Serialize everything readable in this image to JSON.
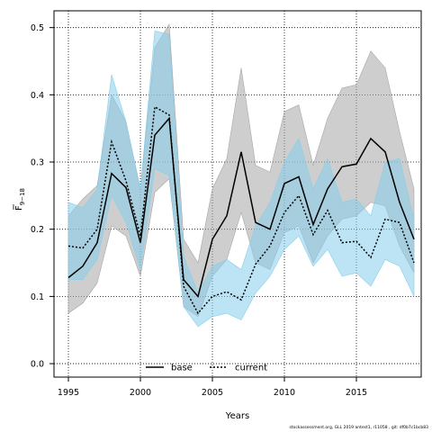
{
  "chart_data": {
    "type": "line",
    "xlabel": "Years",
    "ylabel": "F",
    "ylabel_sub": "9−18",
    "xlim": [
      1994,
      2019.5
    ],
    "ylim": [
      -0.02,
      0.525
    ],
    "xticks": [
      1995,
      2000,
      2005,
      2010,
      2015
    ],
    "yticks": [
      0.0,
      0.1,
      0.2,
      0.3,
      0.4,
      0.5
    ],
    "grid": true,
    "legend_position": "bottom-center",
    "x": [
      1995,
      1996,
      1997,
      1998,
      1999,
      2000,
      2001,
      2002,
      2003,
      2004,
      2005,
      2006,
      2007,
      2008,
      2009,
      2010,
      2011,
      2012,
      2013,
      2014,
      2015,
      2016,
      2017,
      2018,
      2019
    ],
    "series": [
      {
        "name": "base",
        "color": "#000000",
        "band_color": "#a6a6a6",
        "style": "solid",
        "values": [
          0.128,
          0.145,
          0.18,
          0.283,
          0.262,
          0.18,
          0.34,
          0.365,
          0.125,
          0.1,
          0.185,
          0.22,
          0.315,
          0.21,
          0.2,
          0.268,
          0.278,
          0.207,
          0.26,
          0.293,
          0.297,
          0.335,
          0.315,
          0.24,
          0.185
        ],
        "lower": [
          0.075,
          0.09,
          0.12,
          0.205,
          0.19,
          0.13,
          0.255,
          0.275,
          0.085,
          0.07,
          0.13,
          0.155,
          0.225,
          0.15,
          0.14,
          0.195,
          0.205,
          0.15,
          0.19,
          0.215,
          0.22,
          0.24,
          0.235,
          0.175,
          0.135
        ],
        "upper": [
          0.22,
          0.245,
          0.265,
          0.4,
          0.36,
          0.26,
          0.47,
          0.505,
          0.185,
          0.15,
          0.26,
          0.305,
          0.44,
          0.295,
          0.285,
          0.375,
          0.385,
          0.295,
          0.365,
          0.41,
          0.415,
          0.465,
          0.44,
          0.345,
          0.26
        ]
      },
      {
        "name": "current",
        "color": "#000000",
        "band_color": "#87ceeb",
        "style": "dotted",
        "values": [
          0.175,
          0.172,
          0.2,
          0.33,
          0.272,
          0.19,
          0.382,
          0.37,
          0.115,
          0.075,
          0.1,
          0.107,
          0.095,
          0.148,
          0.175,
          0.225,
          0.25,
          0.192,
          0.228,
          0.18,
          0.182,
          0.158,
          0.215,
          0.21,
          0.15
        ],
        "lower": [
          0.125,
          0.125,
          0.155,
          0.25,
          0.21,
          0.14,
          0.29,
          0.28,
          0.085,
          0.055,
          0.07,
          0.075,
          0.065,
          0.105,
          0.13,
          0.17,
          0.19,
          0.145,
          0.17,
          0.13,
          0.135,
          0.115,
          0.155,
          0.145,
          0.1
        ],
        "upper": [
          0.24,
          0.232,
          0.26,
          0.43,
          0.36,
          0.26,
          0.495,
          0.49,
          0.16,
          0.105,
          0.145,
          0.155,
          0.14,
          0.205,
          0.24,
          0.3,
          0.335,
          0.26,
          0.305,
          0.24,
          0.245,
          0.22,
          0.3,
          0.305,
          0.215
        ]
      }
    ]
  },
  "footer": "stockassessment.org, GLL 2019 antest1, r11058 , git: df0b7c1bcb83"
}
